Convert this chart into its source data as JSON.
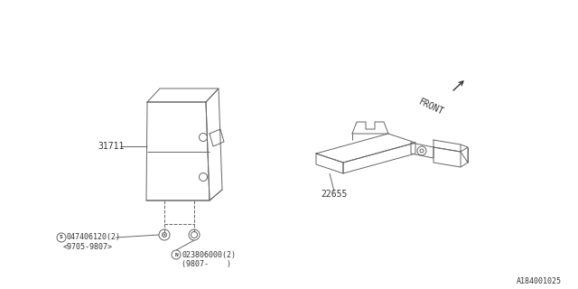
{
  "bg_color": "#ffffff",
  "line_color": "#666666",
  "text_color": "#333333",
  "part1_label": "31711",
  "part2_label": "22655",
  "screw1_label": "047406120(2)",
  "screw1_sub": "<9705-9807>",
  "screw2_label": "023806000(2)",
  "screw2_sub": "(9807-    )",
  "front_label": "FRONT",
  "diagram_id": "A184001025",
  "fig_width": 6.4,
  "fig_height": 3.2,
  "dpi": 100
}
